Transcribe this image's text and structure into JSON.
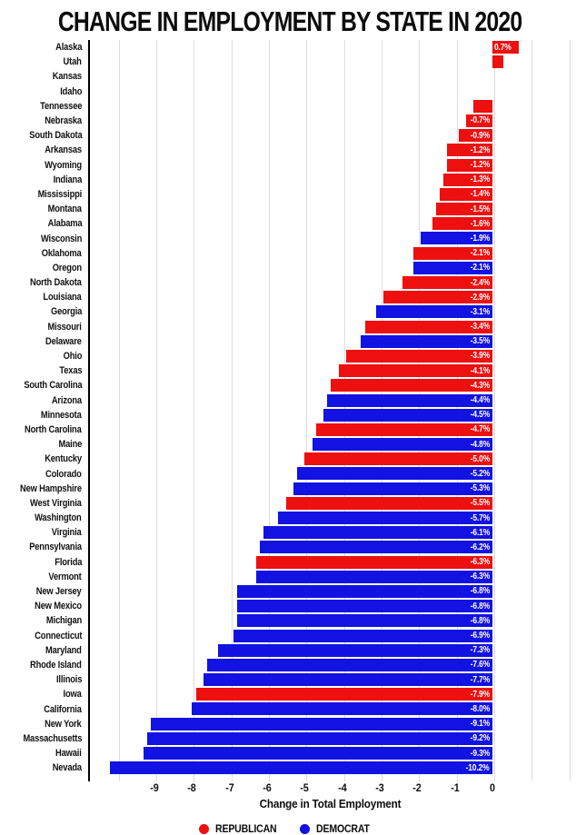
{
  "title": "CHANGE IN EMPLOYMENT BY STATE IN 2020",
  "chart_data": {
    "type": "bar",
    "orientation": "horizontal",
    "title": "CHANGE IN EMPLOYMENT BY STATE IN 2020",
    "xlabel": "Change in Total Employment",
    "xlim": [
      -10.77,
      2.13
    ],
    "x_ticks": [
      -9,
      -8,
      -7,
      -6,
      -5,
      -4,
      -3,
      -2,
      -1,
      0
    ],
    "grid_values": [
      -10,
      -9,
      -8,
      -7,
      -6,
      -5,
      -4,
      -3,
      -2,
      -1,
      0,
      1,
      2
    ],
    "grid": true,
    "legend_position": "bottom",
    "colors": {
      "republican": "#ee0f0f",
      "democrat": "#1212e2"
    },
    "legend": [
      {
        "label": "REPUBLICAN",
        "party": "republican"
      },
      {
        "label": "DEMOCRAT",
        "party": "democrat"
      }
    ],
    "value_unit": "percent",
    "states": [
      {
        "state": "Alaska",
        "value": 0.7,
        "party": "republican",
        "label": "0.7%"
      },
      {
        "state": "Utah",
        "value": 0.3,
        "party": "republican",
        "label": ""
      },
      {
        "state": "Kansas",
        "value": 0.0,
        "party": "republican",
        "label": ""
      },
      {
        "state": "Idaho",
        "value": 0.0,
        "party": "republican",
        "label": ""
      },
      {
        "state": "Tennessee",
        "value": -0.5,
        "party": "republican",
        "label": ""
      },
      {
        "state": "Nebraska",
        "value": -0.7,
        "party": "republican",
        "label": "-0.7%"
      },
      {
        "state": "South Dakota",
        "value": -0.9,
        "party": "republican",
        "label": "-0.9%"
      },
      {
        "state": "Arkansas",
        "value": -1.2,
        "party": "republican",
        "label": "-1.2%"
      },
      {
        "state": "Wyoming",
        "value": -1.2,
        "party": "republican",
        "label": "-1.2%"
      },
      {
        "state": "Indiana",
        "value": -1.3,
        "party": "republican",
        "label": "-1.3%"
      },
      {
        "state": "Mississippi",
        "value": -1.4,
        "party": "republican",
        "label": "-1.4%"
      },
      {
        "state": "Montana",
        "value": -1.5,
        "party": "republican",
        "label": "-1.5%"
      },
      {
        "state": "Alabama",
        "value": -1.6,
        "party": "republican",
        "label": "-1.6%"
      },
      {
        "state": "Wisconsin",
        "value": -1.9,
        "party": "democrat",
        "label": "-1.9%"
      },
      {
        "state": "Oklahoma",
        "value": -2.1,
        "party": "republican",
        "label": "-2.1%"
      },
      {
        "state": "Oregon",
        "value": -2.1,
        "party": "democrat",
        "label": "-2.1%"
      },
      {
        "state": "North Dakota",
        "value": -2.4,
        "party": "republican",
        "label": "-2.4%"
      },
      {
        "state": "Louisiana",
        "value": -2.9,
        "party": "republican",
        "label": "-2.9%"
      },
      {
        "state": "Georgia",
        "value": -3.1,
        "party": "democrat",
        "label": "-3.1%"
      },
      {
        "state": "Missouri",
        "value": -3.4,
        "party": "republican",
        "label": "-3.4%"
      },
      {
        "state": "Delaware",
        "value": -3.5,
        "party": "democrat",
        "label": "-3.5%"
      },
      {
        "state": "Ohio",
        "value": -3.9,
        "party": "republican",
        "label": "-3.9%"
      },
      {
        "state": "Texas",
        "value": -4.1,
        "party": "republican",
        "label": "-4.1%"
      },
      {
        "state": "South Carolina",
        "value": -4.3,
        "party": "republican",
        "label": "-4.3%"
      },
      {
        "state": "Arizona",
        "value": -4.4,
        "party": "democrat",
        "label": "-4.4%"
      },
      {
        "state": "Minnesota",
        "value": -4.5,
        "party": "democrat",
        "label": "-4.5%"
      },
      {
        "state": "North Carolina",
        "value": -4.7,
        "party": "republican",
        "label": "-4.7%"
      },
      {
        "state": "Maine",
        "value": -4.8,
        "party": "democrat",
        "label": "-4.8%"
      },
      {
        "state": "Kentucky",
        "value": -5.0,
        "party": "republican",
        "label": "-5.0%"
      },
      {
        "state": "Colorado",
        "value": -5.2,
        "party": "democrat",
        "label": "-5.2%"
      },
      {
        "state": "New Hampshire",
        "value": -5.3,
        "party": "democrat",
        "label": "-5.3%"
      },
      {
        "state": "West Virginia",
        "value": -5.5,
        "party": "republican",
        "label": "-5.5%"
      },
      {
        "state": "Washington",
        "value": -5.7,
        "party": "democrat",
        "label": "-5.7%"
      },
      {
        "state": "Virginia",
        "value": -6.1,
        "party": "democrat",
        "label": "-6.1%"
      },
      {
        "state": "Pennsylvania",
        "value": -6.2,
        "party": "democrat",
        "label": "-6.2%"
      },
      {
        "state": "Florida",
        "value": -6.3,
        "party": "republican",
        "label": "-6.3%"
      },
      {
        "state": "Vermont",
        "value": -6.3,
        "party": "democrat",
        "label": "-6.3%"
      },
      {
        "state": "New Jersey",
        "value": -6.8,
        "party": "democrat",
        "label": "-6.8%"
      },
      {
        "state": "New Mexico",
        "value": -6.8,
        "party": "democrat",
        "label": "-6.8%"
      },
      {
        "state": "Michigan",
        "value": -6.8,
        "party": "democrat",
        "label": "-6.8%"
      },
      {
        "state": "Connecticut",
        "value": -6.9,
        "party": "democrat",
        "label": "-6.9%"
      },
      {
        "state": "Maryland",
        "value": -7.3,
        "party": "democrat",
        "label": "-7.3%"
      },
      {
        "state": "Rhode Island",
        "value": -7.6,
        "party": "democrat",
        "label": "-7.6%"
      },
      {
        "state": "Illinois",
        "value": -7.7,
        "party": "democrat",
        "label": "-7.7%"
      },
      {
        "state": "Iowa",
        "value": -7.9,
        "party": "republican",
        "label": "-7.9%"
      },
      {
        "state": "California",
        "value": -8.0,
        "party": "democrat",
        "label": "-8.0%"
      },
      {
        "state": "New York",
        "value": -9.1,
        "party": "democrat",
        "label": "-9.1%"
      },
      {
        "state": "Massachusetts",
        "value": -9.2,
        "party": "democrat",
        "label": "-9.2%"
      },
      {
        "state": "Hawaii",
        "value": -9.3,
        "party": "democrat",
        "label": "-9.3%"
      },
      {
        "state": "Nevada",
        "value": -10.2,
        "party": "democrat",
        "label": "-10.2%"
      }
    ]
  }
}
